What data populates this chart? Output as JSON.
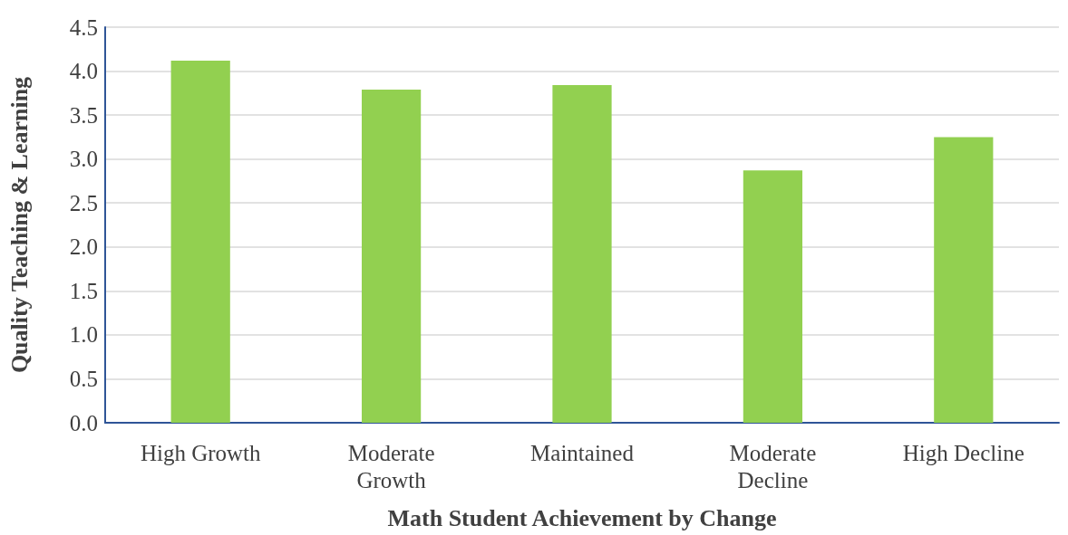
{
  "chart_data": {
    "type": "bar",
    "xlabel": "Math Student Achievement by Change",
    "ylabel": "Quality Teaching & Learning",
    "categories": [
      "High Growth",
      "Moderate\nGrowth",
      "Maintained",
      "Moderate\nDecline",
      "High Decline"
    ],
    "values": [
      4.12,
      3.79,
      3.84,
      2.87,
      3.25
    ],
    "color": "#92d050",
    "ylim": [
      0,
      4.5
    ],
    "yticks": [
      {
        "value": 0,
        "label": "0.0"
      },
      {
        "value": 0.5,
        "label": "0.5"
      },
      {
        "value": 1,
        "label": "1.0"
      },
      {
        "value": 1.5,
        "label": "1.5"
      },
      {
        "value": 2,
        "label": "2.0"
      },
      {
        "value": 2.5,
        "label": "2.5"
      },
      {
        "value": 3,
        "label": "3.0"
      },
      {
        "value": 3.5,
        "label": "3.5"
      },
      {
        "value": 4,
        "label": "4.0"
      },
      {
        "value": 4.5,
        "label": "4.5"
      }
    ],
    "grid": "y"
  }
}
